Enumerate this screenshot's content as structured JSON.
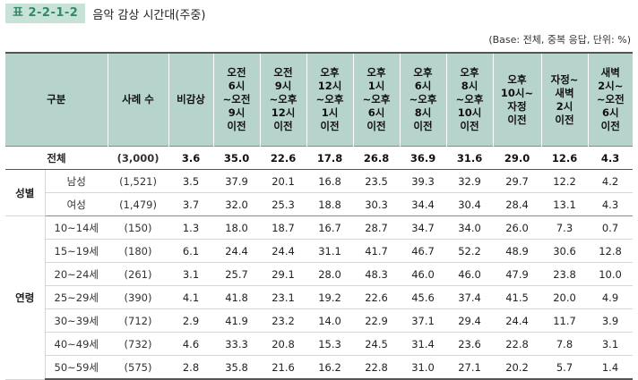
{
  "title": {
    "badge": "표 2-2-1-2",
    "text": "음악 감상 시간대(주중)"
  },
  "base_note": "(Base: 전체, 중복 응답, 단위: %)",
  "headers": {
    "category": "구분",
    "cases": "사례 수",
    "no_listen": "비감상",
    "slots": [
      [
        "오전",
        "6시",
        "~오전",
        "9시",
        "이전"
      ],
      [
        "오전",
        "9시",
        "~오후",
        "12시",
        "이전"
      ],
      [
        "오후",
        "12시",
        "~오후",
        "1시",
        "이전"
      ],
      [
        "오후",
        "1시",
        "~오후",
        "6시",
        "이전"
      ],
      [
        "오후",
        "6시",
        "~오후",
        "8시",
        "이전"
      ],
      [
        "오후",
        "8시",
        "~오후",
        "10시",
        "이전"
      ],
      [
        "오후",
        "10시~",
        "자정",
        "이전"
      ],
      [
        "자정~",
        "새벽",
        "2시",
        "이전"
      ],
      [
        "새벽",
        "2시~",
        "~오전",
        "6시",
        "이전"
      ]
    ]
  },
  "total": {
    "label": "전체",
    "cases": "(3,000)",
    "values": [
      "3.6",
      "35.0",
      "22.6",
      "17.8",
      "26.8",
      "36.9",
      "31.6",
      "29.0",
      "12.6",
      "4.3"
    ]
  },
  "groups": [
    {
      "label": "성별",
      "rows": [
        {
          "label": "남성",
          "cases": "(1,521)",
          "values": [
            "3.5",
            "37.9",
            "20.1",
            "16.8",
            "23.5",
            "39.3",
            "32.9",
            "29.7",
            "12.2",
            "4.2"
          ]
        },
        {
          "label": "여성",
          "cases": "(1,479)",
          "values": [
            "3.7",
            "32.0",
            "25.3",
            "18.8",
            "30.3",
            "34.4",
            "30.4",
            "28.4",
            "13.1",
            "4.3"
          ]
        }
      ]
    },
    {
      "label": "연령",
      "rows": [
        {
          "label": "10~14세",
          "cases": "(150)",
          "values": [
            "1.3",
            "18.0",
            "18.7",
            "16.7",
            "28.7",
            "34.7",
            "34.0",
            "26.0",
            "7.3",
            "0.7"
          ]
        },
        {
          "label": "15~19세",
          "cases": "(180)",
          "values": [
            "6.1",
            "24.4",
            "24.4",
            "31.1",
            "41.7",
            "46.7",
            "52.2",
            "48.9",
            "30.6",
            "12.8"
          ]
        },
        {
          "label": "20~24세",
          "cases": "(261)",
          "values": [
            "3.1",
            "25.7",
            "29.1",
            "28.0",
            "48.3",
            "46.0",
            "46.0",
            "47.9",
            "23.8",
            "10.0"
          ]
        },
        {
          "label": "25~29세",
          "cases": "(390)",
          "values": [
            "4.1",
            "41.8",
            "23.1",
            "19.2",
            "22.6",
            "45.6",
            "37.4",
            "41.5",
            "20.0",
            "4.9"
          ]
        },
        {
          "label": "30~39세",
          "cases": "(712)",
          "values": [
            "2.9",
            "41.9",
            "23.2",
            "14.0",
            "22.9",
            "37.1",
            "29.4",
            "24.4",
            "11.7",
            "3.9"
          ]
        },
        {
          "label": "40~49세",
          "cases": "(732)",
          "values": [
            "4.6",
            "33.3",
            "20.8",
            "15.3",
            "24.5",
            "31.4",
            "23.6",
            "22.8",
            "7.8",
            "3.1"
          ]
        },
        {
          "label": "50~59세",
          "cases": "(575)",
          "values": [
            "2.8",
            "35.8",
            "21.6",
            "16.2",
            "22.8",
            "31.0",
            "27.1",
            "20.2",
            "5.7",
            "1.4"
          ]
        }
      ]
    }
  ]
}
